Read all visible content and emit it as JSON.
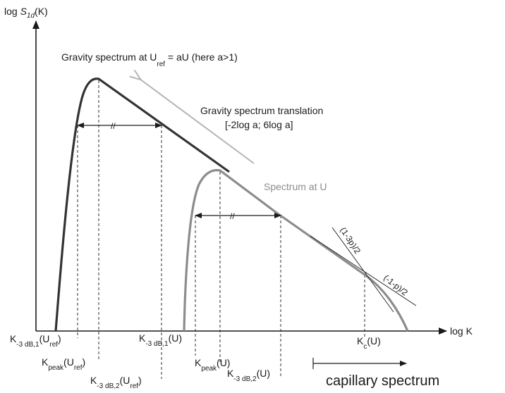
{
  "axes": {
    "y_label": {
      "prefix": "log ",
      "symbol": "S",
      "subscript": "1d",
      "suffix": "(K)"
    },
    "x_label": "log K"
  },
  "curves": {
    "gravity": {
      "title_main": "Gravity spectrum at U",
      "title_sub": "ref",
      "title_tail": " = aU (here a>1)",
      "color": "#333333"
    },
    "current": {
      "label": "Spectrum at U",
      "color": "#8c8c8c"
    }
  },
  "translation": {
    "line1": "Gravity spectrum translation",
    "line2": "[-2log a; 6log a]",
    "arrow_color": "#b4b4b4"
  },
  "slopes": {
    "capillary_side": "(1-3p)/2",
    "gravity_side": "(-1-p)/2"
  },
  "ticks": {
    "k3db1_ref": {
      "main": "K",
      "sub": "-3 dB,1",
      "arg": "(U",
      "arg_sub": "ref",
      "close": ")"
    },
    "kpeak_ref": {
      "main": "K",
      "sub": "peak",
      "arg": "(U",
      "arg_sub": "ref",
      "close": ")"
    },
    "k3db2_ref": {
      "main": "K",
      "sub": "-3 dB,2",
      "arg": "(U",
      "arg_sub": "ref",
      "close": ")"
    },
    "k3db1_u": {
      "main": "K",
      "sub": "-3 dB,1",
      "arg": "(U)"
    },
    "kpeak_u": {
      "main": "K",
      "sub": "peak",
      "arg": "(U)"
    },
    "k3db2_u": {
      "main": "K",
      "sub": "-3 dB,2",
      "arg": "(U)"
    },
    "kc_u": {
      "main": "K",
      "sub": "c",
      "arg": "(U)"
    }
  },
  "capillary": {
    "label": "capillary spectrum"
  },
  "bandwidth_mark": "//"
}
